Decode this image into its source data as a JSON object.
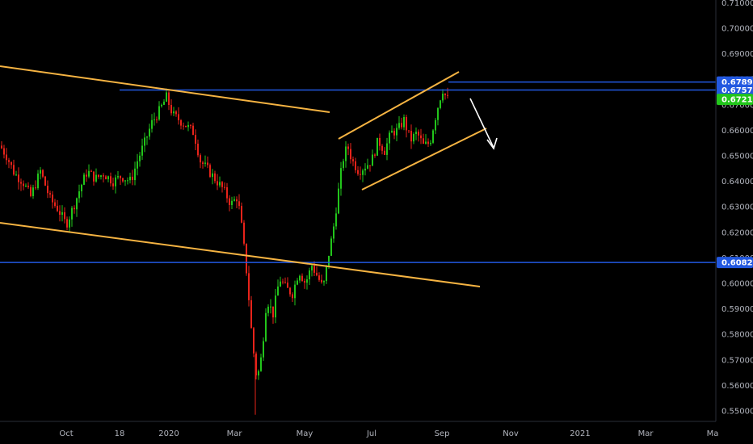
{
  "chart_data": {
    "type": "candlestick",
    "title": "",
    "xlabel": "",
    "ylabel": "",
    "x_ticks": [
      "Oct",
      "18",
      "2020",
      "Mar",
      "May",
      "Jul",
      "Sep",
      "Nov",
      "2021",
      "Mar",
      "Ma"
    ],
    "y_ticks": [
      "0.71000",
      "0.70000",
      "0.69000",
      "0.68000",
      "0.67000",
      "0.66000",
      "0.65000",
      "0.64000",
      "0.63000",
      "0.62000",
      "0.61000",
      "0.60000",
      "0.59000",
      "0.58000",
      "0.57000",
      "0.56000",
      "0.55000"
    ],
    "ylim": [
      0.5465,
      0.7115
    ],
    "colors": {
      "up": "#22c51b",
      "down": "#e8231a",
      "trend": "#f5b342",
      "level": "#2258e0",
      "arrow": "#ffffff",
      "price_tag": "#22c51b"
    },
    "price_levels": [
      {
        "label": "0.67892",
        "value": 0.67892,
        "color": "#2258e0"
      },
      {
        "label": "0.67579",
        "value": 0.67579,
        "color": "#2258e0"
      },
      {
        "label": "0.60821",
        "value": 0.60821,
        "color": "#2258e0"
      }
    ],
    "current_price": {
      "label": "0.67212",
      "value": 0.67212,
      "color": "#22c51b"
    },
    "candles_summary": [
      {
        "date": "2019-09",
        "high": 0.66,
        "low": 0.636
      },
      {
        "date": "2019-10",
        "high": 0.65,
        "low": 0.62
      },
      {
        "date": "2019-12",
        "high": 0.675,
        "low": 0.66
      },
      {
        "date": "2020-03",
        "high": 0.65,
        "low": 0.551
      },
      {
        "date": "2020-06",
        "high": 0.656,
        "low": 0.64
      },
      {
        "date": "2020-08",
        "high": 0.67,
        "low": 0.65
      },
      {
        "date": "2020-09",
        "high": 0.681,
        "low": 0.667
      }
    ]
  }
}
